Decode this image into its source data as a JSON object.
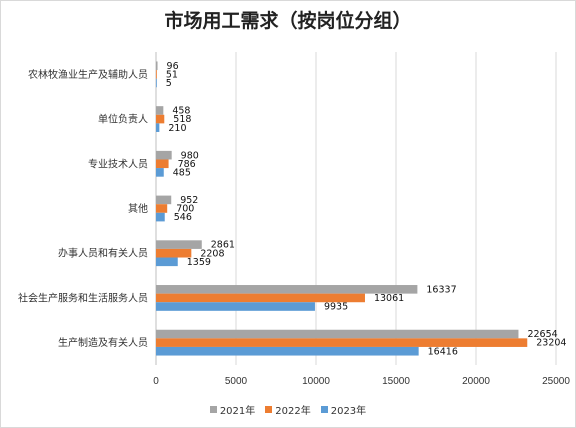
{
  "chart_data": {
    "type": "bar",
    "orientation": "horizontal",
    "title": "市场用工需求（按岗位分组）",
    "categories": [
      "农林牧渔业生产及辅助人员",
      "单位负责人",
      "专业技术人员",
      "其他",
      "办事人员和有关人员",
      "社会生产服务和生活服务人员",
      "生产制造及有关人员"
    ],
    "series": [
      {
        "name": "2021年",
        "color": "#a5a5a5",
        "values": [
          96,
          458,
          980,
          952,
          2861,
          16337,
          22654
        ]
      },
      {
        "name": "2022年",
        "color": "#ed7d31",
        "values": [
          51,
          518,
          786,
          700,
          2208,
          13061,
          23204
        ]
      },
      {
        "name": "2023年",
        "color": "#5b9bd5",
        "values": [
          5,
          210,
          485,
          546,
          1359,
          9935,
          16416
        ]
      }
    ],
    "xlim": [
      0,
      25000
    ],
    "xticks": [
      0,
      5000,
      10000,
      15000,
      20000,
      25000
    ],
    "grid": true,
    "legend_position": "bottom"
  }
}
